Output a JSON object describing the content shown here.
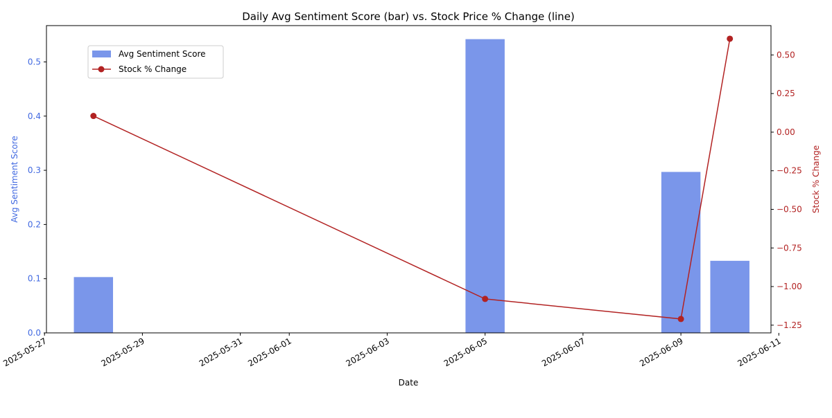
{
  "chart_data": {
    "type": "bar+line",
    "title": "Daily Avg Sentiment Score (bar) vs. Stock Price % Change (line)",
    "xlabel": "Date",
    "ylabel_left": "Avg Sentiment Score",
    "ylabel_right": "Stock % Change",
    "x_ticks": [
      "2025-05-27",
      "2025-05-29",
      "2025-05-31",
      "2025-06-01",
      "2025-06-03",
      "2025-06-05",
      "2025-06-07",
      "2025-06-09",
      "2025-06-11"
    ],
    "x_range": [
      "2025-05-27",
      "2025-06-11"
    ],
    "ylim_left": [
      0,
      0.567
    ],
    "y_ticks_left": [
      "0.0",
      "0.1",
      "0.2",
      "0.3",
      "0.4",
      "0.5"
    ],
    "ylim_right": [
      -1.3,
      0.69
    ],
    "y_ticks_right": [
      "−1.25",
      "−1.00",
      "−0.75",
      "−0.50",
      "−0.25",
      "0.00",
      "0.25",
      "0.50"
    ],
    "series": [
      {
        "name": "Avg Sentiment Score",
        "type": "bar",
        "axis": "left",
        "color": "#4169e1",
        "x": [
          "2025-05-28",
          "2025-06-05",
          "2025-06-09",
          "2025-06-10"
        ],
        "values": [
          0.103,
          0.542,
          0.297,
          0.133
        ]
      },
      {
        "name": "Stock % Change",
        "type": "line",
        "axis": "right",
        "color": "#b22222",
        "x": [
          "2025-05-28",
          "2025-06-05",
          "2025-06-09",
          "2025-06-10"
        ],
        "values": [
          0.105,
          -1.08,
          -1.21,
          0.605
        ]
      }
    ],
    "legend_position": "upper-left",
    "grid": false
  }
}
